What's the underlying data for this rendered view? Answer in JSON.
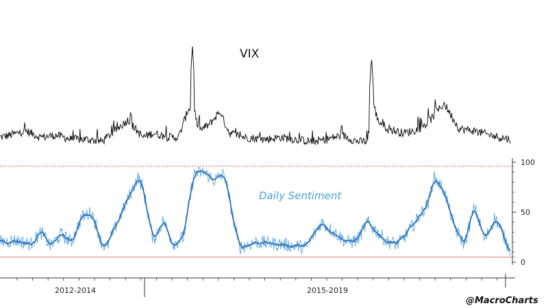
{
  "chart_data": {
    "type": "line",
    "panels": [
      {
        "name": "VIX",
        "label": "VIX",
        "color": "#000000",
        "anchors_x": [
          0,
          0.02,
          0.05,
          0.08,
          0.11,
          0.14,
          0.17,
          0.2,
          0.22,
          0.25,
          0.28,
          0.3,
          0.33,
          0.35,
          0.37,
          0.38,
          0.39,
          0.41,
          0.43,
          0.45,
          0.48,
          0.52,
          0.55,
          0.58,
          0.61,
          0.64,
          0.67,
          0.7,
          0.72,
          0.73,
          0.74,
          0.76,
          0.79,
          0.81,
          0.83,
          0.85,
          0.87,
          0.9,
          0.93,
          0.96,
          1.0
        ],
        "anchors_v": [
          14,
          15,
          17,
          14,
          15,
          13,
          13,
          12,
          16,
          22,
          14,
          16,
          14,
          14,
          28,
          26,
          17,
          20,
          26,
          16,
          14,
          13,
          14,
          13,
          12,
          13,
          15,
          12,
          12,
          32,
          22,
          18,
          16,
          17,
          19,
          24,
          30,
          18,
          17,
          15,
          13
        ],
        "spikes": [
          {
            "x": 0.377,
            "v": 57
          },
          {
            "x": 0.728,
            "v": 52
          },
          {
            "x": 0.256,
            "v": 28
          },
          {
            "x": 0.433,
            "v": 27
          },
          {
            "x": 0.853,
            "v": 33
          },
          {
            "x": 0.39,
            "v": 25
          }
        ]
      },
      {
        "name": "Daily Sentiment",
        "label": "Daily Sentiment",
        "color": "#2e6fb8",
        "raw_color": "#4a9ee0",
        "y_ticks": [
          0,
          50,
          100
        ],
        "ylim": [
          0,
          100
        ],
        "ref_lines": [
          96,
          5
        ],
        "anchors_x": [
          0,
          0.03,
          0.06,
          0.08,
          0.1,
          0.12,
          0.14,
          0.16,
          0.18,
          0.2,
          0.21,
          0.23,
          0.25,
          0.27,
          0.28,
          0.3,
          0.32,
          0.34,
          0.36,
          0.38,
          0.4,
          0.42,
          0.44,
          0.46,
          0.47,
          0.5,
          0.55,
          0.6,
          0.63,
          0.66,
          0.68,
          0.7,
          0.72,
          0.74,
          0.76,
          0.78,
          0.8,
          0.82,
          0.84,
          0.85,
          0.87,
          0.89,
          0.91,
          0.93,
          0.95,
          0.97,
          1.0
        ],
        "anchors_v": [
          20,
          22,
          18,
          30,
          16,
          28,
          20,
          45,
          50,
          18,
          15,
          40,
          62,
          85,
          75,
          22,
          42,
          18,
          25,
          88,
          90,
          82,
          88,
          35,
          15,
          20,
          18,
          15,
          40,
          28,
          20,
          22,
          40,
          30,
          20,
          18,
          30,
          45,
          60,
          85,
          72,
          35,
          18,
          55,
          22,
          45,
          12
        ]
      }
    ],
    "x_tick_labels": [
      "2012-2014",
      "2015-2019"
    ],
    "handle": "@MacroCharts"
  }
}
